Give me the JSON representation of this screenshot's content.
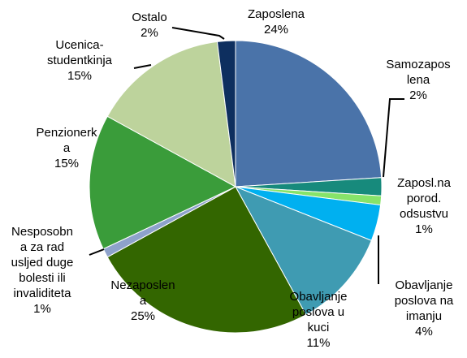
{
  "chart_data": {
    "type": "pie",
    "categories": [
      "Zaposlena",
      "Samozapos\nlena",
      "Zaposl.na\nporod.\nodsustvu",
      "Obavljanje\nposlova na\nimanju",
      "Obavljanje\nposlova u\nkuci",
      "Nezaposlen\na",
      "Nesposobn\na za rad\nusljed duge\nbolesti ili\ninvaliditeta",
      "Penzionerk\na",
      "Ucenica-\nstudentkinja",
      "Ostalo"
    ],
    "values": [
      24,
      2,
      1,
      4,
      11,
      25,
      1,
      15,
      15,
      2
    ],
    "value_labels": [
      "24%",
      "2%",
      "1%",
      "4%",
      "11%",
      "25%",
      "1%",
      "15%",
      "15%",
      "2%"
    ],
    "colors": [
      "#4a73a9",
      "#178a7c",
      "#86e36a",
      "#00b0f0",
      "#3f9bb2",
      "#336600",
      "#8ea2cb",
      "#3a9c3a",
      "#bdd39c",
      "#0e2f5f"
    ]
  }
}
